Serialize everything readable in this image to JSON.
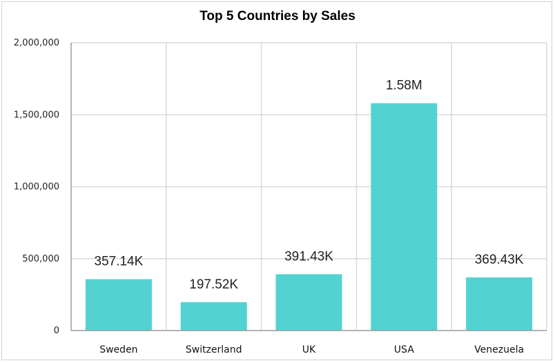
{
  "chart_data": {
    "type": "bar",
    "title": "Top 5 Countries by Sales",
    "xlabel": "",
    "ylabel": "",
    "categories": [
      "Sweden",
      "Switzerland",
      "UK",
      "USA",
      "Venezuela"
    ],
    "values": [
      357140,
      197520,
      391430,
      1580000,
      369430
    ],
    "data_labels": [
      "357.14K",
      "197.52K",
      "391.43K",
      "1.58M",
      "369.43K"
    ],
    "ylim": [
      0,
      2000000
    ],
    "yticks": [
      0,
      500000,
      1000000,
      1500000,
      2000000
    ],
    "ytick_labels": [
      "0",
      "500,000",
      "1,000,000",
      "1,500,000",
      "2,000,000"
    ],
    "grid": true,
    "legend": "none",
    "bar_color": "#53d2d2"
  }
}
